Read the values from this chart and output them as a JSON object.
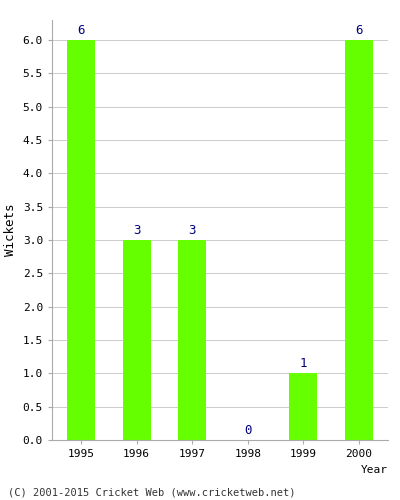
{
  "years": [
    "1995",
    "1996",
    "1997",
    "1998",
    "1999",
    "2000"
  ],
  "values": [
    6,
    3,
    3,
    0,
    1,
    6
  ],
  "bar_color": "#66ff00",
  "bar_edge_color": "#66ff00",
  "label_color": "#000080",
  "ylabel": "Wickets",
  "xlabel": "Year",
  "ylim": [
    0,
    6.3
  ],
  "yticks": [
    0.0,
    0.5,
    1.0,
    1.5,
    2.0,
    2.5,
    3.0,
    3.5,
    4.0,
    4.5,
    5.0,
    5.5,
    6.0
  ],
  "background_color": "#ffffff",
  "grid_color": "#cccccc",
  "footer": "(C) 2001-2015 Cricket Web (www.cricketweb.net)"
}
